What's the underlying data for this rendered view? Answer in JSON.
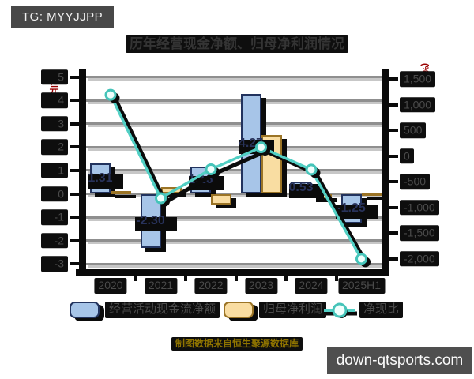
{
  "badge": {
    "text": "TG: MYYJJPP"
  },
  "title": "历年经营现金净额、归母净利润情况",
  "source_note": "制图数据来自恒生聚源数据库",
  "watermark": "down-qtsports.com",
  "colors": {
    "cashflow_bar_fill": "#a7c5e8",
    "cashflow_bar_border": "#22335e",
    "netprofit_bar_fill": "#f9dda2",
    "netprofit_bar_border": "#9b7426",
    "ratio_line": "#52cfc4",
    "marker_fill": "#effffd",
    "shadow": "#0b0b0b",
    "unit_label_red": "#990000",
    "chip_background": "#0e0e0e"
  },
  "left_axis": {
    "unit": "(亿元)",
    "ticks": [
      "5",
      "4",
      "3",
      "2",
      "1",
      "0",
      "-1",
      "-2",
      "-3"
    ],
    "tick_values": [
      5,
      4,
      3,
      2,
      1,
      0,
      -1,
      -2,
      -3
    ]
  },
  "right_axis": {
    "unit": "(%)",
    "ticks": [
      "1,500",
      "1,000",
      "500",
      "0",
      "-500",
      "-1,000",
      "-1,500",
      "-2,000"
    ],
    "tick_values": [
      1500,
      1000,
      500,
      0,
      -500,
      -1000,
      -1500,
      -2000
    ]
  },
  "chart_data": {
    "type": "bar",
    "title": "历年经营现金净额、归母净利润情况",
    "categories": [
      "2020",
      "2021",
      "2022",
      "2023",
      "2024",
      "2025H1"
    ],
    "series": [
      {
        "name": "经营活动现金流净额",
        "type": "bar",
        "axis": "left",
        "values": [
          1.31,
          -2.3,
          1.16,
          4.27,
          0.53,
          -1.25
        ],
        "labels": [
          "1.31",
          "-2.30",
          "1.16",
          "4.27",
          "0.53",
          "-1.25"
        ]
      },
      {
        "name": "归母净利润",
        "type": "bar",
        "axis": "left",
        "values": [
          0.11,
          0.28,
          -0.45,
          2.52,
          -0.2,
          0.06
        ]
      },
      {
        "name": "净现比",
        "type": "line",
        "axis": "right",
        "values": [
          1190,
          -820,
          -258,
          170,
          -265,
          -2000
        ]
      }
    ],
    "left_ylim": [
      -3,
      5
    ],
    "right_ylim": [
      -2000,
      1500
    ],
    "left_ylabel": "(亿元)",
    "right_ylabel": "(%)",
    "grid": true,
    "legend_position": "bottom"
  }
}
